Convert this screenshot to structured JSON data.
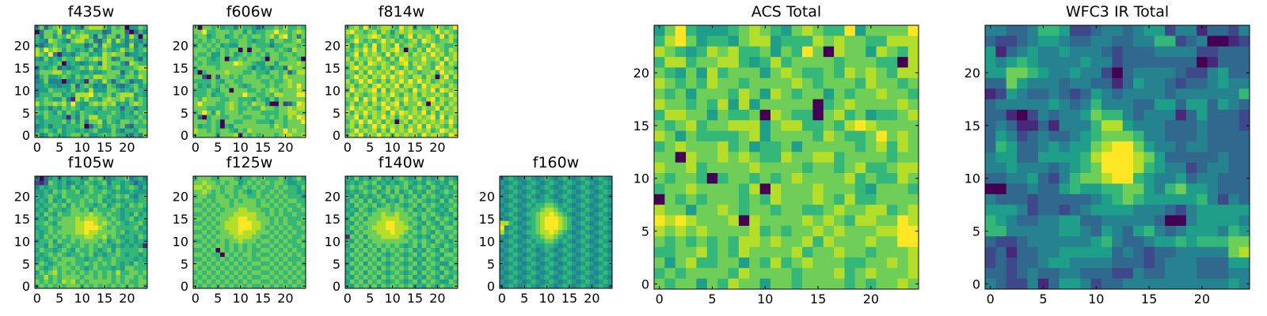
{
  "chart_data": [
    {
      "type": "heatmap",
      "title": "f435w",
      "xticks": [
        0,
        5,
        10,
        15,
        20
      ],
      "yticks": [
        0,
        5,
        10,
        15,
        20
      ],
      "xlim": [
        -0.5,
        24.5
      ],
      "ylim": [
        -0.5,
        24.5
      ],
      "colormap": "viridis",
      "value_scale": "levels 0-9, rows listed from y=24 down to y=0",
      "rows": [
        "5736785565478887576705576",
        "0477683586766663477730364",
        "6477576867886375774748607",
        "6548765478867436858646546",
        "5356766766635748755548464",
        "8697875765657457656867567",
        "8769415546775658787735565",
        "5475657668767878745777536",
        "6665670565456638777538766",
        "3656735456768678756666788",
        "5777886766556556777367577",
        "3675567657676887776577687",
        "4574440456517658636763557",
        "5565545573676454764356756",
        "4557666575658555776565765",
        "4666775658889676757888565",
        "6676557418686657877867576",
        "8677878696557878785657876",
        "6564657676566657666366466",
        "7676575765766566676565767",
        "5576665164768866766566576",
        "6566667575747785765776767",
        "4564665666703675676743666",
        "5676575665656755575466577",
        "7457665677675567676653647"
      ]
    },
    {
      "type": "heatmap",
      "title": "f606w",
      "xticks": [
        0,
        5,
        10,
        15,
        20
      ],
      "yticks": [
        0,
        5,
        10,
        15,
        20
      ],
      "xlim": [
        -0.5,
        24.5
      ],
      "ylim": [
        -0.5,
        24.5
      ],
      "colormap": "viridis",
      "value_scale": "levels 0-9",
      "rows": [
        "7077675664766535667686676",
        "7796677767757566779776787",
        "6775677567676776786896747",
        "7676767766776566757766786",
        "5767675655776766646677767",
        "7776767677070776776765877",
        "7667557675676767577677677",
        "6776567066767776077667760",
        "7676667779877655775777787",
        "6777767777776465646638777",
        "6067777877766766577673688",
        "7720737767677767767687777",
        "6666765776677776676678777",
        "7565767677656777676778797",
        "6667657707776676787677787",
        "6667566777797766768877799",
        "7687776677666576575777777",
        "7977766787676877500723698",
        "7776666787667668776778788",
        "6797586777677776666778877",
        "7306776677766777676768798",
        "7776760776677766657767779",
        "7566760657777777768767777",
        "8776767765768777777797877",
        "7777757778176767776788778"
      ]
    },
    {
      "type": "heatmap",
      "title": "f814w",
      "xticks": [
        0,
        5,
        10,
        15,
        20
      ],
      "yticks": [
        0,
        5,
        10,
        15,
        20
      ],
      "xlim": [
        -0.5,
        24.5
      ],
      "ylim": [
        -0.5,
        24.5
      ],
      "colormap": "viridis",
      "value_scale": "levels 0-9",
      "rows": [
        "6786976788769785766787679",
        "8977678687578787777697876",
        "7687789867675796878769687",
        "6797676797867678698767786",
        "8576869687696787676977667",
        "7687979687897076869787687",
        "6796878769687868787978678",
        "8687787976869877797786978",
        "7868698787678968787679687",
        "6897877687976867977698776",
        "7768697878689787677869787",
        "6797868797978768868707968",
        "8679797686879797978678776",
        "7867868978796887697887687",
        "6978789696878769787969878",
        "8687678787976878687787697",
        "7796979678687978768968778",
        "6867868797896877970878687",
        "7978787689787678687796878",
        "8687978786979878796868778",
        "7796868797868797878969687",
        "6879797868707868787878797",
        "7868679797878687969787686",
        "6797878686978797878679878",
        "7879687978687878697887698"
      ]
    },
    {
      "type": "heatmap",
      "title": "f105w",
      "xticks": [
        0,
        5,
        10,
        15,
        20
      ],
      "yticks": [
        0,
        5,
        10,
        15,
        20
      ],
      "xlim": [
        -0.5,
        24.5
      ],
      "ylim": [
        -0.5,
        24.5
      ],
      "colormap": "viridis",
      "value_scale": "levels 0-9",
      "rows": [
        "4035646566557675456674564",
        "2137656456576567466565355",
        "4656656575667656567567646",
        "5565767667567667656556555",
        "6567657666676676567675466",
        "5657565766767675656566566",
        "6566767576766567567657676",
        "5657665677675766676566665",
        "6576576677778776766565756",
        "5657667778788877676567566",
        "6676577778899878767656675",
        "5667667778899987676666756",
        "6567677778898877776756665",
        "6576767677788778676566576",
        "5667576676777767567656565",
        "6657656766767676656565651",
        "5766567657667656757666676",
        "6567676566767565667656656",
        "5656767776656676676666565",
        "6765677676676767676565766",
        "7656767767656766656577666",
        "5767867676767676768667767",
        "6686767777677676767677676",
        "7676768786767777767676677",
        "6767676777676767676767676"
      ]
    },
    {
      "type": "heatmap",
      "title": "f125w",
      "xticks": [
        0,
        5,
        10,
        15,
        20
      ],
      "yticks": [
        0,
        5,
        10,
        15,
        20
      ],
      "xlim": [
        -0.5,
        24.5
      ],
      "ylim": [
        -0.5,
        24.5
      ],
      "colormap": "viridis",
      "value_scale": "levels 0-9",
      "rows": [
        "6777667776566767666765675",
        "7787767677567676767765566",
        "8878776776676767667676657",
        "7787676776765676676766656",
        "6776677676776676767676665",
        "7767677767677767676767766",
        "6676767767777767767676676",
        "7767676777887776676767667",
        "6676767778888877676766766",
        "7767677788998877767676667",
        "6676767888999887767676676",
        "7767677888999887676767667",
        "6676767788988877767676766",
        "7767677778888776676767667",
        "6676767677877767767676676",
        "7767677676767676676767667",
        "6676707676767667767676766",
        "7767660767677676676767676",
        "6676767676767667767676667",
        "7767676767676776676767676",
        "7676767676767667767676767",
        "6767676767676776676767676",
        "7676767676767667767676767",
        "6767676767676776676767676",
        "7676767676767667767676767"
      ]
    },
    {
      "type": "heatmap",
      "title": "f140w",
      "xticks": [
        0,
        5,
        10,
        15,
        20
      ],
      "yticks": [
        0,
        5,
        10,
        15,
        20
      ],
      "xlim": [
        -0.5,
        24.5
      ],
      "ylim": [
        -0.5,
        24.5
      ],
      "colormap": "viridis",
      "value_scale": "levels 0-9",
      "rows": [
        "6575656756567656756567565",
        "5656767565656765657656576",
        "6767656757676756765765657",
        "5656767567575675657656766",
        "6575656756767567576765657",
        "5767575675657676765657576",
        "6576767567676567576765667",
        "5657656777677675657656576",
        "6576767787787767676765657",
        "5767577788887776576576766",
        "6576777889988767657657657",
        "5767678889988876576765776",
        "6576777888988767676576667",
        "1767577788887676565767576",
        "6576767777777767676576657",
        "5767576767676567576765766",
        "6576767576767675657657657",
        "5767576765676567576765776",
        "6576767576767675657657667",
        "5767576765676567576765576",
        "6576767576767675657657657",
        "5767576765676567576765766",
        "6576767576767675657657657",
        "5767576765676567576765576",
        "6576767576767675657657667"
      ]
    },
    {
      "type": "heatmap",
      "title": "f160w",
      "xticks": [
        0,
        5,
        10,
        15,
        20
      ],
      "yticks": [
        0,
        5,
        10,
        15,
        20
      ],
      "xlim": [
        -0.5,
        24.5
      ],
      "ylim": [
        -0.5,
        24.5
      ],
      "colormap": "viridis",
      "value_scale": "levels 0-9",
      "rows": [
        "4565456545654565456545654",
        "5456545654565456545654565",
        "4565456545654565456545654",
        "5456545654565456545654565",
        "4565456545654565456545654",
        "5456545655665456545654565",
        "4565456566776565456545654",
        "5456545667887656545654565",
        "4565456678898765456545654",
        "5456545678999876545654565",
        "8865456678999876456545654",
        "9456545678999876545654565",
        "8565456678898765456545654",
        "5456545667887656545654565",
        "4565456566776565456545654",
        "5456545655665456545654565",
        "4565456545654565456545654",
        "5456545654565456545654565",
        "4565456545654565456545654",
        "5456545654565456545654565",
        "4565456545654565456545654",
        "5456545654565456545654565",
        "4565456545654565456545654",
        "5456545654565456545654565",
        "4565456545654565456545654"
      ]
    },
    {
      "type": "heatmap",
      "title": "ACS Total",
      "xticks": [
        0,
        5,
        10,
        15,
        20
      ],
      "yticks": [
        0,
        5,
        10,
        15,
        20
      ],
      "xlim": [
        -0.5,
        24.5
      ],
      "ylim": [
        -0.5,
        24.5
      ],
      "colormap": "viridis",
      "value_scale": "levels 0-9",
      "rows": [
        "5796555678765787669577779",
        "6897566578856668787766888",
        "8765687866757697087758768",
        "6886778865686777767776608",
        "7657586777578766768787688",
        "8767687767777876777687767",
        "7675777687587677576778776",
        "8776768585777770678777787",
        "6887757667087660786756678",
        "7678677888578866768987777",
        "8757666678577776876679787",
        "6787778675667577777678687",
        "7708778787668778867777677",
        "8778677778777767767866788",
        "7677606776767877778676687",
        "6778777768087778777657776",
        "0767677767687778768667777",
        "8775778767767766787788678",
        "9898777808777787876887798",
        "8787877778676778787778899",
        "7676767688787786877787799",
        "6677867687777867787767778",
        "7578667757686787776677878",
        "6767777687777677786787778",
        "7677576877577677776767787"
      ]
    },
    {
      "type": "heatmap",
      "title": "WFC3 IR Total",
      "xticks": [
        0,
        5,
        10,
        15,
        20
      ],
      "yticks": [
        0,
        5,
        10,
        15,
        20
      ],
      "xlim": [
        -0.5,
        24.5
      ],
      "ylim": [
        -0.5,
        24.5
      ],
      "colormap": "viridis",
      "value_scale": "levels 0-9",
      "rows": [
        "4433466522344345524413324",
        "3223455433443344662340012",
        "5134544544432333444422333",
        "5456544445442333333301333",
        "5577654454420344443224533",
        "3375444344331354432334544",
        "1254334323543444434444446",
        "3444445434644433553553543",
        "3310243445766434441353332",
        "3431131444688544433343332",
        "3542343345677764433343333",
        "3653345455789975443443333",
        "4553355556899987533333433",
        "4454443456799986544234433",
        "3344532467789965445344333",
        "0033433565566775467554333",
        "4333233333456765555564243",
        "5554233234555544432455555",
        "6543344553344444300455554",
        "6644444554354356434555465",
        "3223444444564334556566677",
        "2313344555553432334444478",
        "2323345544443332344433355",
        "3323433443332243344433344",
        "4322413554233444444444454"
      ]
    }
  ]
}
